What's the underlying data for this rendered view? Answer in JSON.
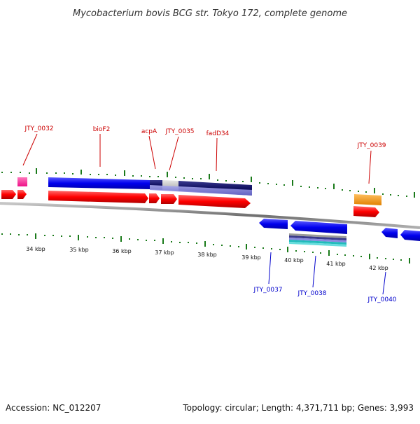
{
  "header": {
    "title": "Mycobacterium bovis BCG str. Tokyo 172, complete genome"
  },
  "footer": {
    "accession": "Accession: NC_012207",
    "summary": "Topology: circular; Length: 4,371,711 bp; Genes: 3,993"
  },
  "colors": {
    "forward_cds": "#ff0000",
    "reverse_cds": "#0000ff",
    "tick_mark": "#1a7a1a",
    "backbone": "#888888",
    "label_forward": "#cc0000",
    "label_reverse": "#0000cc",
    "feature_pink": "#ff3399",
    "feature_orange": "#ff9900"
  },
  "axis": {
    "unit": "kbp",
    "ticks": [
      {
        "label": "34 kbp"
      },
      {
        "label": "35 kbp"
      },
      {
        "label": "36 kbp"
      },
      {
        "label": "37 kbp"
      },
      {
        "label": "38 kbp"
      },
      {
        "label": "39 kbp"
      },
      {
        "label": "40 kbp"
      },
      {
        "label": "41 kbp"
      },
      {
        "label": "42 kbp"
      }
    ]
  },
  "labels": {
    "top": [
      {
        "text": "JTY_0032"
      },
      {
        "text": "bioF2"
      },
      {
        "text": "acpA"
      },
      {
        "text": "JTY_0035"
      },
      {
        "text": "fadD34"
      },
      {
        "text": "JTY_0039"
      }
    ],
    "bottom": [
      {
        "text": "JTY_0037"
      },
      {
        "text": "JTY_0038"
      },
      {
        "text": "JTY_0040"
      }
    ]
  }
}
